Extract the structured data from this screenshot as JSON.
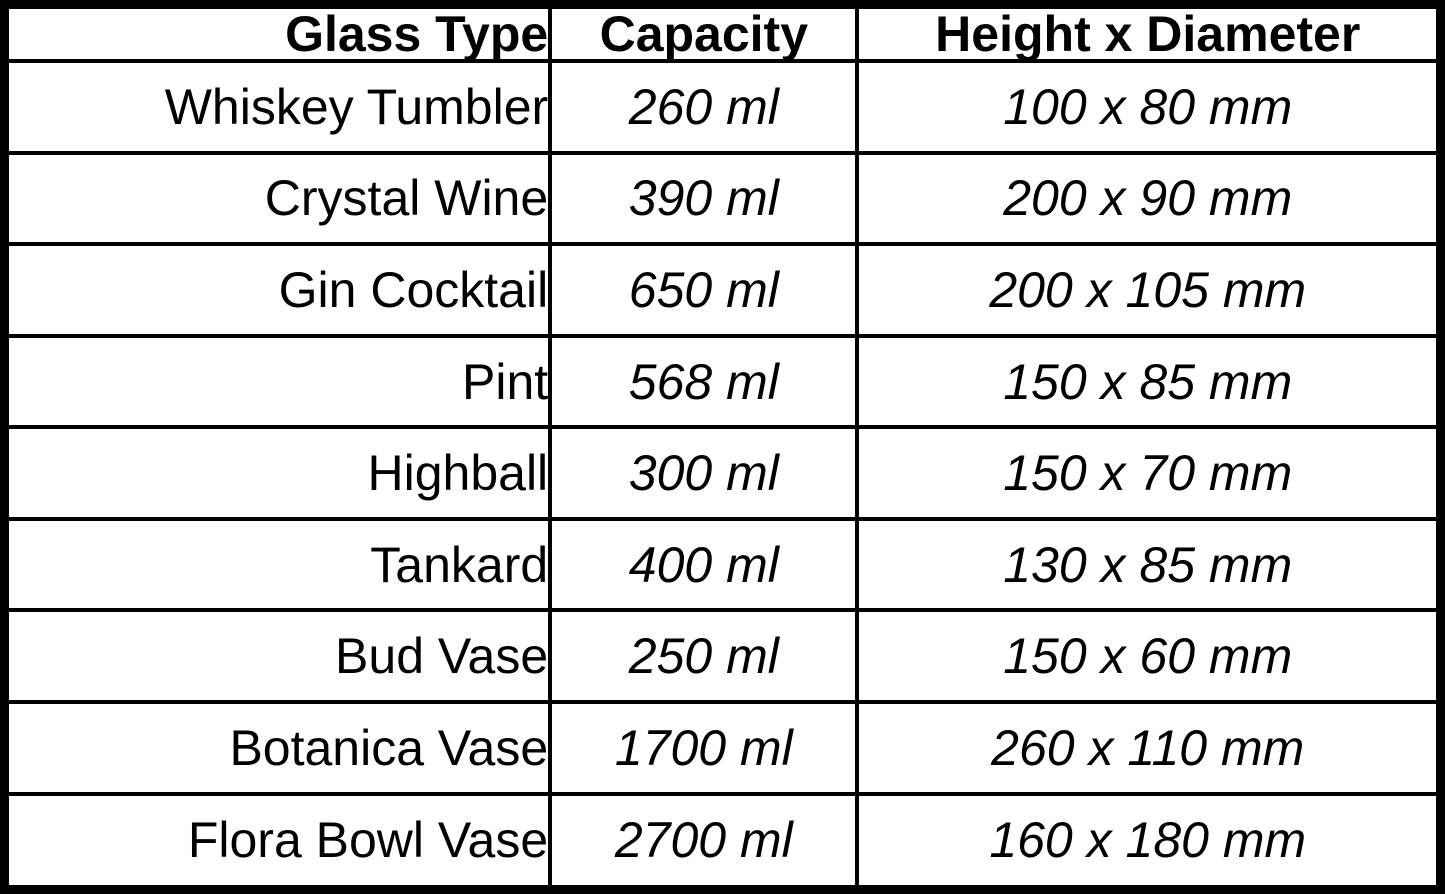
{
  "table": {
    "headers": {
      "glass_type": "Glass Type",
      "capacity": "Capacity",
      "height_x_diameter": "Height x Diameter"
    },
    "rows": [
      {
        "glass_type": "Whiskey Tumbler",
        "capacity": "260 ml",
        "height_x_diameter": "100 x 80 mm"
      },
      {
        "glass_type": "Crystal Wine",
        "capacity": "390 ml",
        "height_x_diameter": "200 x 90 mm"
      },
      {
        "glass_type": "Gin Cocktail",
        "capacity": "650 ml",
        "height_x_diameter": "200 x 105 mm"
      },
      {
        "glass_type": "Pint",
        "capacity": "568 ml",
        "height_x_diameter": "150 x 85 mm"
      },
      {
        "glass_type": "Highball",
        "capacity": "300 ml",
        "height_x_diameter": "150 x 70 mm"
      },
      {
        "glass_type": "Tankard",
        "capacity": "400 ml",
        "height_x_diameter": "130 x 85 mm"
      },
      {
        "glass_type": "Bud Vase",
        "capacity": "250 ml",
        "height_x_diameter": "150 x 60 mm"
      },
      {
        "glass_type": "Botanica Vase",
        "capacity": "1700 ml",
        "height_x_diameter": "260 x 110 mm"
      },
      {
        "glass_type": "Flora Bowl Vase",
        "capacity": "2700 ml",
        "height_x_diameter": "160 x 180 mm"
      }
    ],
    "colors": {
      "border": "#000000",
      "background": "#ffffff",
      "text": "#000000"
    }
  }
}
